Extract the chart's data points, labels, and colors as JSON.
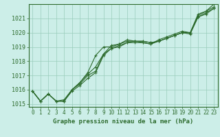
{
  "title": "Graphe pression niveau de la mer (hPa)",
  "background_color": "#cceee8",
  "grid_color": "#99ccbb",
  "line_color": "#2d6b2d",
  "border_color": "#2d6b2d",
  "xlim": [
    -0.5,
    23.5
  ],
  "ylim": [
    1014.8,
    1022.0
  ],
  "yticks": [
    1015,
    1016,
    1017,
    1018,
    1019,
    1020,
    1021
  ],
  "xticks": [
    0,
    1,
    2,
    3,
    4,
    5,
    6,
    7,
    8,
    9,
    10,
    11,
    12,
    13,
    14,
    15,
    16,
    17,
    18,
    19,
    20,
    21,
    22,
    23
  ],
  "series": [
    [
      1015.9,
      1015.2,
      1015.7,
      1015.2,
      1015.3,
      1016.0,
      1016.5,
      1017.2,
      1018.4,
      1019.0,
      1019.0,
      1019.2,
      1019.5,
      1019.4,
      1019.3,
      1019.2,
      1019.5,
      1019.7,
      1019.9,
      1020.1,
      1020.0,
      1021.3,
      1021.5,
      1022.0
    ],
    [
      1015.9,
      1015.2,
      1015.7,
      1015.2,
      1015.2,
      1015.9,
      1016.3,
      1016.8,
      1017.2,
      1018.4,
      1018.9,
      1019.0,
      1019.3,
      1019.3,
      1019.3,
      1019.2,
      1019.4,
      1019.6,
      1019.8,
      1020.0,
      1019.9,
      1021.1,
      1021.4,
      1021.7
    ],
    [
      1015.9,
      1015.2,
      1015.7,
      1015.2,
      1015.2,
      1016.0,
      1016.5,
      1017.1,
      1017.6,
      1018.5,
      1018.9,
      1019.1,
      1019.3,
      1019.4,
      1019.4,
      1019.3,
      1019.4,
      1019.6,
      1019.8,
      1020.0,
      1020.0,
      1021.2,
      1021.5,
      1021.8
    ],
    [
      1015.9,
      1015.2,
      1015.7,
      1015.2,
      1015.2,
      1016.0,
      1016.4,
      1017.0,
      1017.3,
      1018.5,
      1019.1,
      1019.2,
      1019.4,
      1019.4,
      1019.4,
      1019.3,
      1019.4,
      1019.6,
      1019.8,
      1020.0,
      1020.0,
      1021.1,
      1021.3,
      1021.7
    ]
  ],
  "xlabel_fontsize": 6.5,
  "ytick_fontsize": 6.0,
  "xtick_fontsize": 5.5
}
